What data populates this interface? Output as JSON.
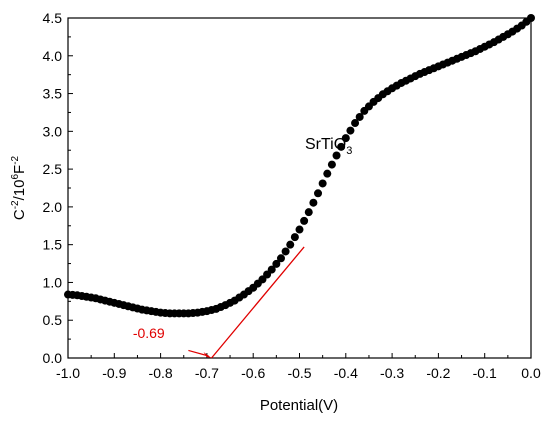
{
  "chart_data": {
    "type": "scatter",
    "title": "",
    "xlabel": "Potential(V)",
    "ylabel": {
      "main": "C",
      "sup1": "-2",
      "mid": "/10",
      "sup2": "6",
      "unit": "F",
      "sup3": "-2"
    },
    "xlim": [
      -1.0,
      0.0
    ],
    "ylim": [
      0.0,
      4.5
    ],
    "x_ticks": [
      "-1.0",
      "-0.9",
      "-0.8",
      "-0.7",
      "-0.6",
      "-0.5",
      "-0.4",
      "-0.3",
      "-0.2",
      "-0.1",
      "0.0"
    ],
    "y_ticks": [
      "0.0",
      "0.5",
      "1.0",
      "1.5",
      "2.0",
      "2.5",
      "3.0",
      "3.5",
      "4.0",
      "4.5"
    ],
    "grid": false,
    "legend": "none",
    "series": [
      {
        "label": {
          "base": "SrTiO",
          "sub": "3"
        },
        "color": "#000000",
        "marker": "circle",
        "x": [
          -1.0,
          -0.98,
          -0.96,
          -0.94,
          -0.92,
          -0.9,
          -0.88,
          -0.86,
          -0.84,
          -0.82,
          -0.8,
          -0.78,
          -0.76,
          -0.74,
          -0.72,
          -0.7,
          -0.68,
          -0.66,
          -0.64,
          -0.62,
          -0.6,
          -0.58,
          -0.56,
          -0.54,
          -0.52,
          -0.5,
          -0.48,
          -0.46,
          -0.44,
          -0.42,
          -0.4,
          -0.38,
          -0.36,
          -0.34,
          -0.32,
          -0.3,
          -0.28,
          -0.26,
          -0.24,
          -0.22,
          -0.2,
          -0.18,
          -0.16,
          -0.14,
          -0.12,
          -0.1,
          -0.08,
          -0.06,
          -0.04,
          -0.02,
          0.0
        ],
        "y": [
          0.84,
          0.83,
          0.81,
          0.79,
          0.76,
          0.73,
          0.7,
          0.67,
          0.64,
          0.62,
          0.6,
          0.59,
          0.59,
          0.59,
          0.6,
          0.62,
          0.65,
          0.7,
          0.76,
          0.84,
          0.93,
          1.04,
          1.17,
          1.32,
          1.5,
          1.7,
          1.93,
          2.18,
          2.44,
          2.68,
          2.91,
          3.11,
          3.27,
          3.39,
          3.49,
          3.57,
          3.64,
          3.7,
          3.76,
          3.81,
          3.86,
          3.91,
          3.96,
          4.01,
          4.06,
          4.12,
          4.18,
          4.25,
          4.32,
          4.4,
          4.5
        ]
      }
    ],
    "annotation": {
      "label": "-0.69",
      "color": "#e00000",
      "intercept_x": -0.69,
      "line_end": [
        -0.49,
        1.47
      ]
    }
  }
}
